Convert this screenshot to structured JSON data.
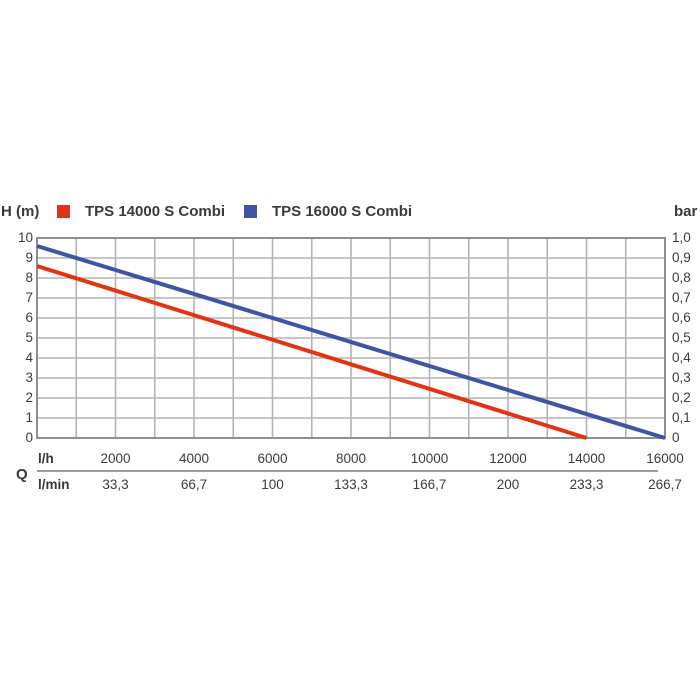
{
  "legend": {
    "left_axis_title": "H (m)",
    "right_axis_title": "bar",
    "items": [
      {
        "label": "TPS 14000 S Combi",
        "color": "#e23312"
      },
      {
        "label": "TPS 16000 S Combi",
        "color": "#4053a4"
      }
    ]
  },
  "axes": {
    "left": {
      "ticks": [
        "10",
        "9",
        "8",
        "7",
        "6",
        "5",
        "4",
        "3",
        "2",
        "1",
        "0"
      ]
    },
    "right": {
      "ticks": [
        "1,0",
        "0,9",
        "0,8",
        "0,7",
        "0,6",
        "0,5",
        "0,4",
        "0,3",
        "0,2",
        "0,1",
        "0"
      ]
    },
    "bottom": {
      "q_label": "Q",
      "lh_unit": "l/h",
      "lh_values": [
        "2000",
        "4000",
        "6000",
        "8000",
        "10000",
        "12000",
        "14000",
        "16000"
      ],
      "lmin_unit": "l/min",
      "lmin_values": [
        "33,3",
        "66,7",
        "100",
        "133,3",
        "166,7",
        "200",
        "233,3",
        "266,7"
      ]
    }
  },
  "chart_data": {
    "type": "line",
    "title": "",
    "xlabel": "Q",
    "x_units": [
      "l/h",
      "l/min"
    ],
    "ylabel_left": "H (m)",
    "ylabel_right": "bar",
    "xlim": [
      0,
      16000
    ],
    "ylim_left": [
      0,
      10
    ],
    "ylim_right": [
      0,
      1.0
    ],
    "grid": true,
    "x_gridline_step": 1000,
    "y_gridline_step": 1,
    "x_tick_values_lh": [
      2000,
      4000,
      6000,
      8000,
      10000,
      12000,
      14000,
      16000
    ],
    "x_tick_values_lmin": [
      33.3,
      66.7,
      100,
      133.3,
      166.7,
      200,
      233.3,
      266.7
    ],
    "legend_position": "top",
    "series": [
      {
        "name": "TPS 14000 S Combi",
        "color": "#e23312",
        "points": [
          [
            0,
            8.6
          ],
          [
            14000,
            0
          ]
        ]
      },
      {
        "name": "TPS 16000 S Combi",
        "color": "#4053a4",
        "points": [
          [
            0,
            9.6
          ],
          [
            16000,
            0
          ]
        ]
      }
    ]
  },
  "colors": {
    "text": "#3c3c3b",
    "grid": "#b3b3b3",
    "border": "#8f8f8f",
    "separator": "#9d9d9c",
    "background": "#ffffff"
  }
}
